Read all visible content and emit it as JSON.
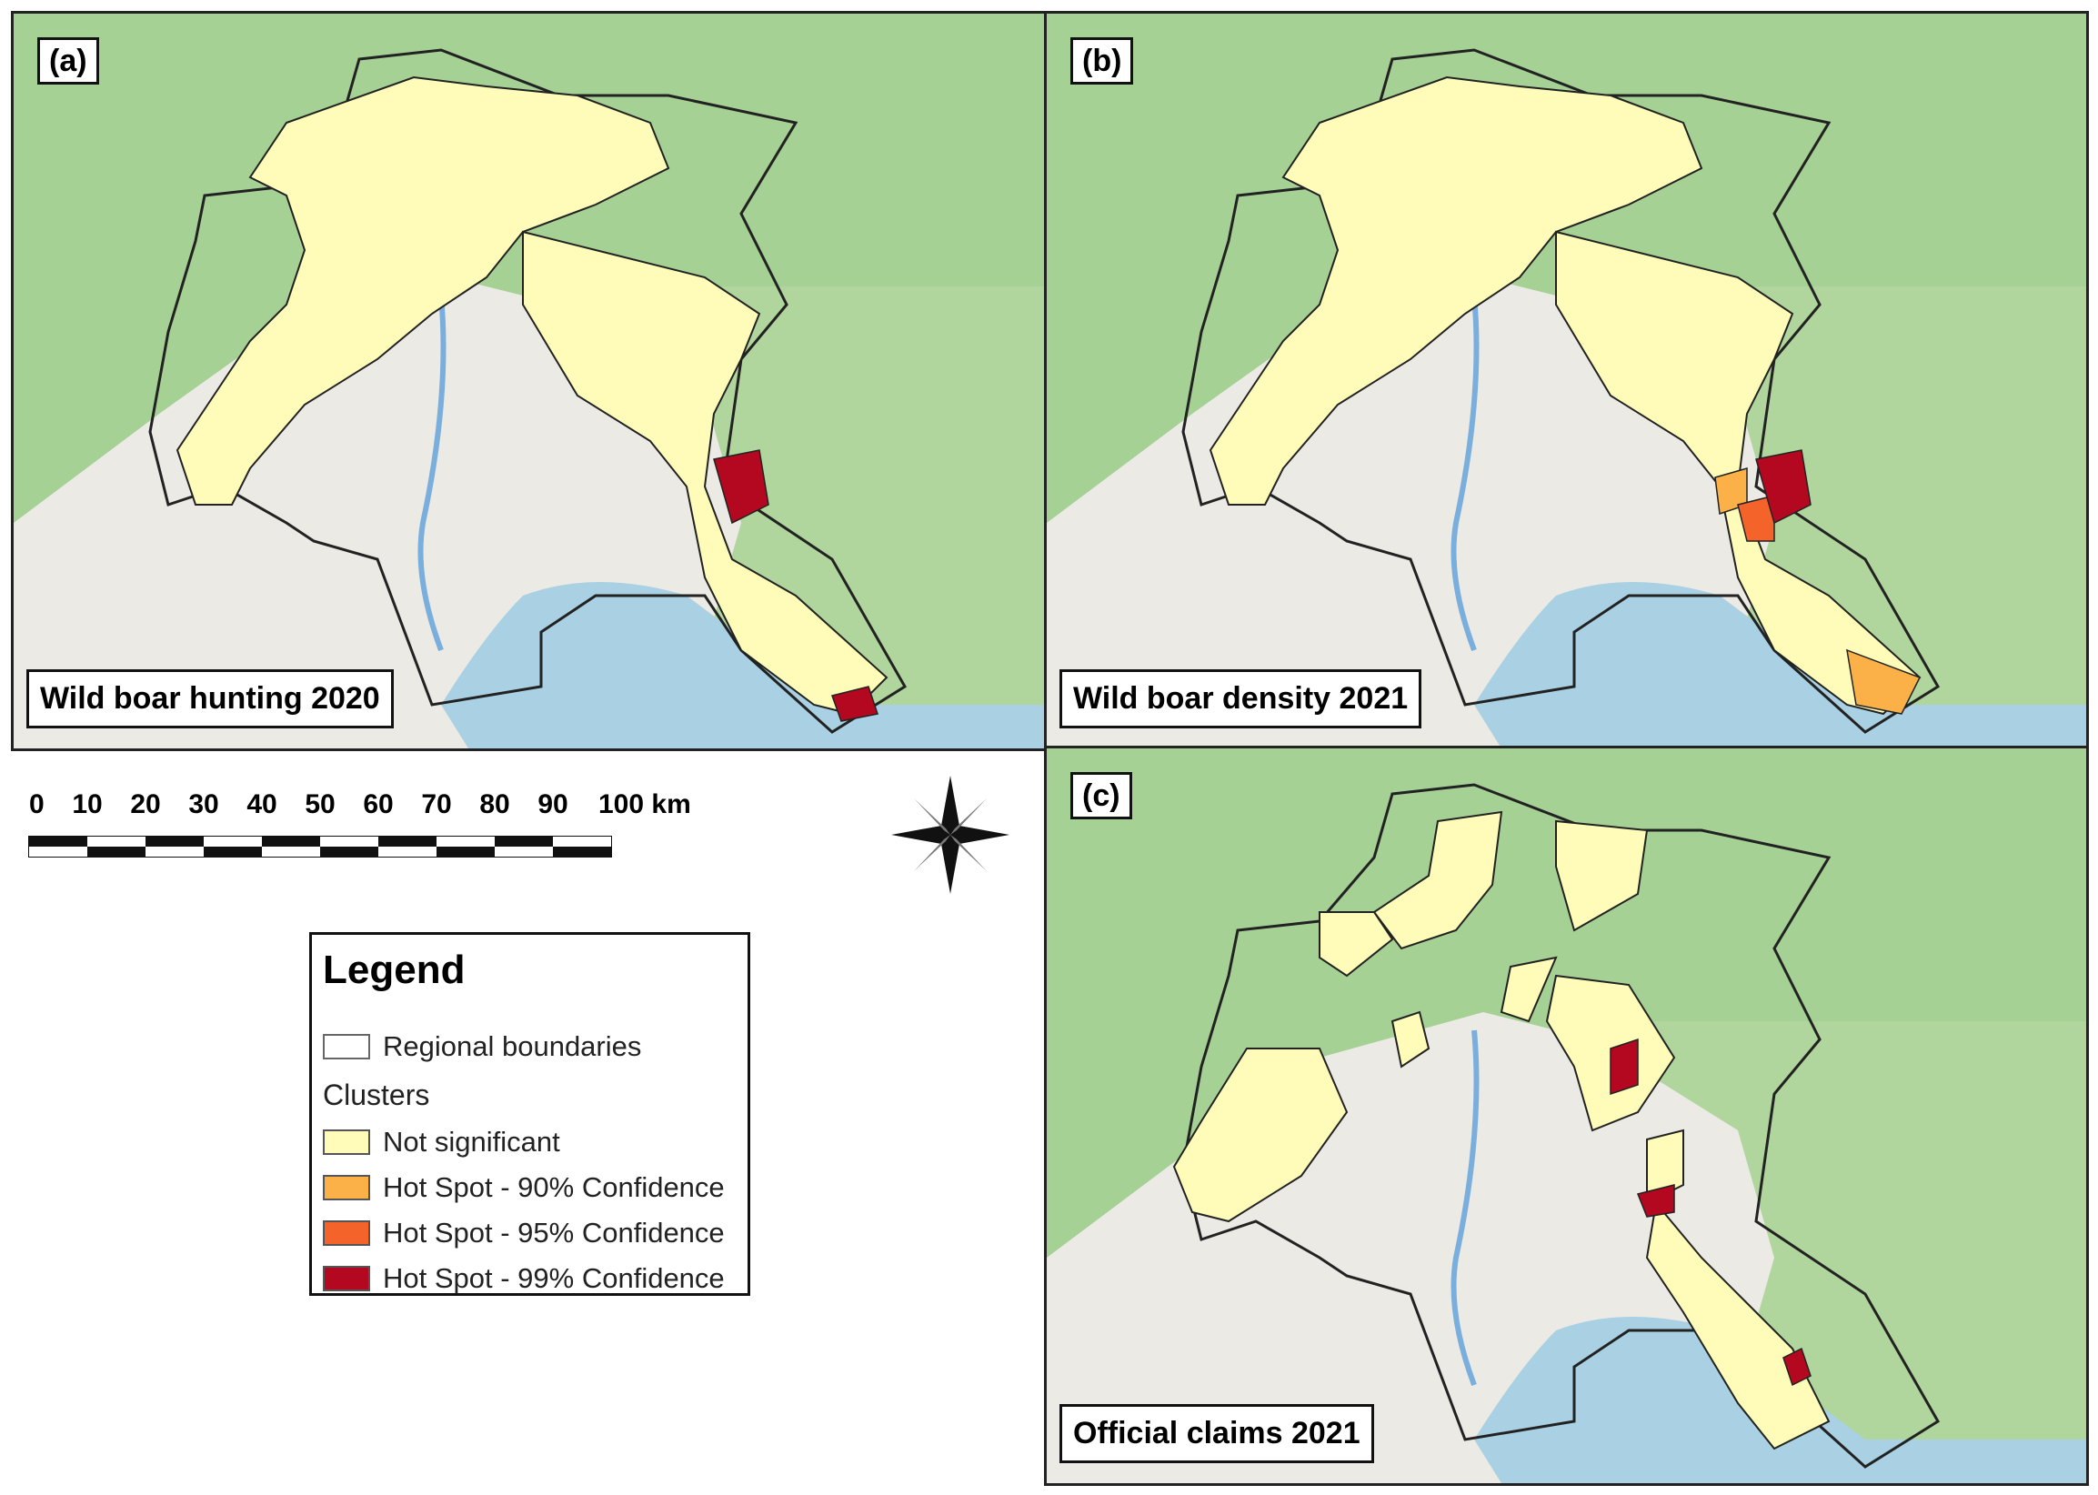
{
  "panels": [
    {
      "id": "a",
      "label": "(a)",
      "caption": "Wild boar hunting 2020"
    },
    {
      "id": "b",
      "label": "(b)",
      "caption": "Wild boar density 2021"
    },
    {
      "id": "c",
      "label": "(c)",
      "caption": "Official claims 2021"
    }
  ],
  "scale_bar": {
    "ticks": [
      "0",
      "10",
      "20",
      "30",
      "40",
      "50",
      "60",
      "70",
      "80",
      "90",
      "100 km"
    ]
  },
  "legend": {
    "title": "Legend",
    "boundary_label": "Regional boundaries",
    "clusters_title": "Clusters",
    "items": [
      {
        "label": "Not significant",
        "color": "#fefcb8"
      },
      {
        "label": "Hot Spot - 90% Confidence",
        "color": "#fbb148"
      },
      {
        "label": "Hot Spot - 95% Confidence",
        "color": "#f4642a"
      },
      {
        "label": "Hot Spot - 99% Confidence",
        "color": "#b3081f"
      }
    ]
  },
  "colors": {
    "sea": "#a9d1e3",
    "forest": "#a6d195",
    "plain": "#ebeae5",
    "boundary": "#222222"
  },
  "icons": [
    "compass-rose-icon"
  ]
}
